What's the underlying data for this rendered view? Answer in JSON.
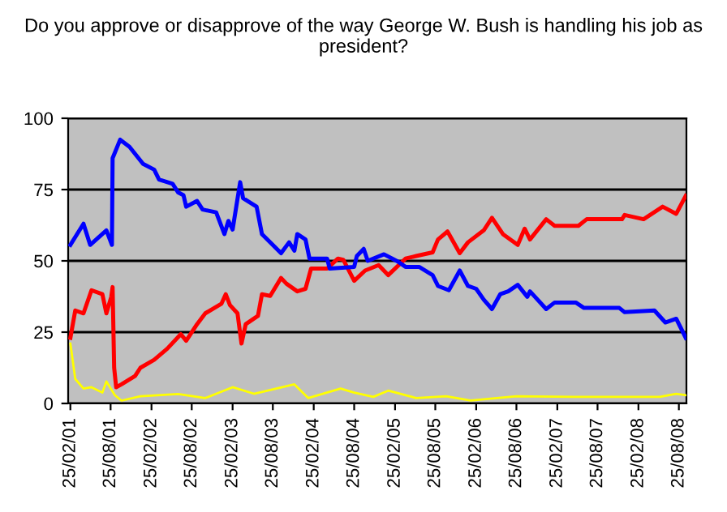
{
  "chart_data": {
    "type": "line",
    "title": "Do you approve or disapprove of the way George W. Bush is handling his job as president?",
    "xlim": [
      "2001-02-15",
      "2008-09-28"
    ],
    "xticks": [
      {
        "value": "2001-02-25",
        "label": "25/02/01"
      },
      {
        "value": "2001-08-25",
        "label": "25/08/01"
      },
      {
        "value": "2002-02-25",
        "label": "25/02/02"
      },
      {
        "value": "2002-08-25",
        "label": "25/08/02"
      },
      {
        "value": "2003-02-25",
        "label": "25/02/03"
      },
      {
        "value": "2003-08-25",
        "label": "25/08/03"
      },
      {
        "value": "2004-02-25",
        "label": "25/02/04"
      },
      {
        "value": "2004-08-25",
        "label": "25/08/04"
      },
      {
        "value": "2005-02-25",
        "label": "25/02/05"
      },
      {
        "value": "2005-08-25",
        "label": "25/08/05"
      },
      {
        "value": "2006-02-25",
        "label": "25/02/06"
      },
      {
        "value": "2006-08-25",
        "label": "25/08/06"
      },
      {
        "value": "2007-02-25",
        "label": "25/02/07"
      },
      {
        "value": "2007-08-25",
        "label": "25/08/07"
      },
      {
        "value": "2008-02-25",
        "label": "25/02/08"
      },
      {
        "value": "2008-08-25",
        "label": "25/08/08"
      }
    ],
    "ylim": [
      0,
      100
    ],
    "yticks": [
      0,
      25,
      50,
      75,
      100
    ],
    "grid": "y",
    "series": [
      {
        "color": "#0000ff",
        "x": [
          "2001-02-25",
          "2001-04-25",
          "2001-05-25",
          "2001-08-06",
          "2001-08-31",
          "2001-09-03",
          "2001-10-07",
          "2001-11-18",
          "2002-01-18",
          "2002-03-09",
          "2002-03-31",
          "2002-05-31",
          "2002-06-25",
          "2002-07-19",
          "2002-07-31",
          "2002-09-18",
          "2002-10-13",
          "2002-12-13",
          "2003-01-19",
          "2003-02-06",
          "2003-02-25",
          "2003-03-31",
          "2003-04-13",
          "2003-06-13",
          "2003-07-07",
          "2003-10-01",
          "2003-11-06",
          "2003-11-30",
          "2003-12-13",
          "2004-01-19",
          "2004-02-06",
          "2004-04-25",
          "2004-05-07",
          "2004-08-25",
          "2004-09-06",
          "2004-10-07",
          "2004-10-25",
          "2005-01-06",
          "2005-03-09",
          "2005-04-13",
          "2005-06-13",
          "2005-08-13",
          "2005-09-06",
          "2005-10-25",
          "2005-12-13",
          "2006-01-19",
          "2006-02-25",
          "2006-03-31",
          "2006-05-07",
          "2006-06-13",
          "2006-07-19",
          "2006-08-31",
          "2006-10-13",
          "2006-10-25",
          "2007-01-06",
          "2007-02-13",
          "2007-05-19",
          "2007-06-25",
          "2007-12-01",
          "2007-12-25",
          "2008-05-07",
          "2008-06-25",
          "2008-08-13",
          "2008-09-25"
        ],
        "values": [
          55.6,
          63,
          55.6,
          60.7,
          55.6,
          86,
          92.5,
          90,
          84,
          82,
          78.5,
          77,
          74,
          73,
          69,
          71,
          68,
          67,
          59.4,
          64,
          61,
          77.6,
          72,
          69,
          59.4,
          52.7,
          56.5,
          53.6,
          59.4,
          57.5,
          50.8,
          50.8,
          47.3,
          47.9,
          51.7,
          54.2,
          50,
          52.3,
          49.8,
          47.9,
          47.9,
          45,
          41.2,
          39.7,
          46.6,
          41.2,
          40.2,
          36.4,
          33.1,
          38.3,
          39.3,
          41.6,
          37.4,
          39.3,
          33.1,
          35.4,
          35.4,
          33.5,
          33.5,
          32,
          32.6,
          28.4,
          29.7,
          23
        ]
      },
      {
        "color": "#ff0000",
        "x": [
          "2001-02-25",
          "2001-03-19",
          "2001-04-25",
          "2001-05-31",
          "2001-07-19",
          "2001-08-06",
          "2001-08-28",
          "2001-09-03",
          "2001-09-10",
          "2001-09-19",
          "2001-10-13",
          "2001-12-13",
          "2002-01-06",
          "2002-03-09",
          "2002-05-07",
          "2002-07-07",
          "2002-07-31",
          "2002-09-18",
          "2002-10-25",
          "2003-01-06",
          "2003-01-25",
          "2003-02-13",
          "2003-03-19",
          "2003-04-06",
          "2003-04-25",
          "2003-06-19",
          "2003-07-07",
          "2003-08-13",
          "2003-10-01",
          "2003-10-25",
          "2003-12-13",
          "2004-01-19",
          "2004-02-13",
          "2004-04-25",
          "2004-06-13",
          "2004-07-07",
          "2004-08-25",
          "2004-10-13",
          "2004-12-13",
          "2005-01-25",
          "2005-04-13",
          "2005-05-31",
          "2005-08-13",
          "2005-09-06",
          "2005-10-19",
          "2005-12-13",
          "2006-01-19",
          "2006-03-31",
          "2006-05-07",
          "2006-06-25",
          "2006-08-31",
          "2006-10-01",
          "2006-10-25",
          "2007-01-06",
          "2007-02-13",
          "2007-05-31",
          "2007-07-07",
          "2007-12-13",
          "2007-12-25",
          "2008-03-19",
          "2008-06-13",
          "2008-08-13",
          "2008-09-25"
        ],
        "values": [
          23,
          32.6,
          31.6,
          39.7,
          38.3,
          31.6,
          37.4,
          40.8,
          12.5,
          5.7,
          6.7,
          9.6,
          12.5,
          15.3,
          19.2,
          24.3,
          22,
          27.8,
          31.6,
          35,
          38.3,
          34.5,
          31.6,
          21,
          27.8,
          30.7,
          38.3,
          37.7,
          44,
          42,
          39.3,
          40.2,
          47.3,
          47.3,
          50.8,
          50.4,
          43,
          46.6,
          48.5,
          45,
          50.8,
          51.7,
          53,
          57.5,
          60.3,
          52.7,
          56.5,
          60.7,
          65.1,
          59.4,
          55.6,
          61.3,
          57.5,
          64.6,
          62.3,
          62.3,
          64.6,
          64.6,
          66.1,
          64.6,
          69,
          66.5,
          72.8
        ]
      },
      {
        "color": "#ffff00",
        "x": [
          "2001-02-25",
          "2001-03-19",
          "2001-04-25",
          "2001-05-31",
          "2001-07-19",
          "2001-08-06",
          "2001-09-13",
          "2001-10-13",
          "2002-01-06",
          "2002-06-25",
          "2002-10-25",
          "2003-02-25",
          "2003-06-01",
          "2003-11-30",
          "2004-01-31",
          "2004-06-25",
          "2004-08-25",
          "2004-11-19",
          "2005-01-25",
          "2005-05-31",
          "2005-10-13",
          "2006-01-31",
          "2006-08-25",
          "2007-05-07",
          "2007-12-13",
          "2008-05-31",
          "2008-08-13",
          "2008-09-25"
        ],
        "values": [
          21,
          8.6,
          5.2,
          5.7,
          3.8,
          7.7,
          2.9,
          1,
          2.5,
          3.3,
          1.9,
          5.7,
          3.4,
          6.7,
          1.9,
          5.2,
          3.8,
          2.3,
          4.5,
          1.9,
          2.5,
          1,
          2.5,
          2.3,
          2.3,
          2.3,
          3.4,
          2.9
        ]
      }
    ]
  }
}
